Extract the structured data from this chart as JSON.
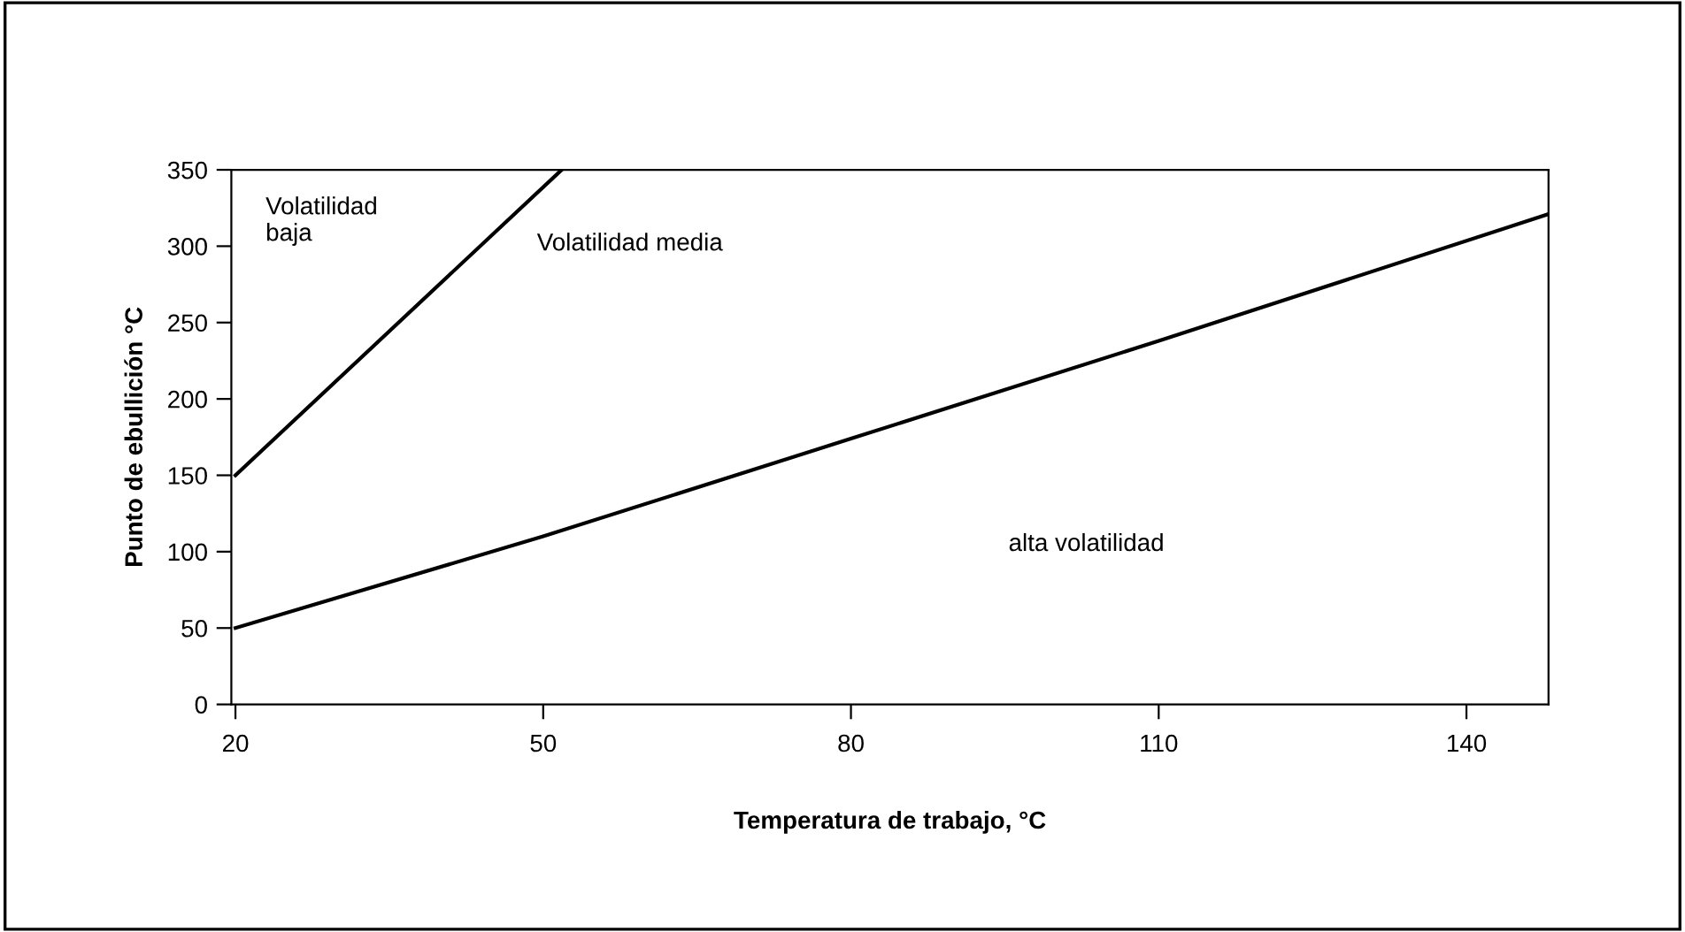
{
  "chart_data": {
    "type": "line",
    "xlabel": "Temperatura de trabajo, °C",
    "ylabel": "Punto de ebullición °C",
    "series": [
      {
        "color": "#000000",
        "x": [
          20,
          51.8
        ],
        "values": [
          150,
          350
        ]
      },
      {
        "color": "#000000",
        "x": [
          20,
          50,
          80,
          110,
          148
        ],
        "values": [
          50,
          110,
          174,
          238,
          321
        ]
      }
    ],
    "xlim": [
      19.6,
      148
    ],
    "ylim": [
      0,
      350
    ],
    "xticks": [
      20,
      50,
      80,
      110,
      140
    ],
    "yticks": [
      0,
      50,
      100,
      150,
      200,
      250,
      300,
      350
    ],
    "grid": false,
    "marker": "none",
    "line_style": "solid",
    "annotations": [
      "Volatilidad\nbaja",
      "Volatilidad media",
      "alta volatilidad"
    ]
  }
}
